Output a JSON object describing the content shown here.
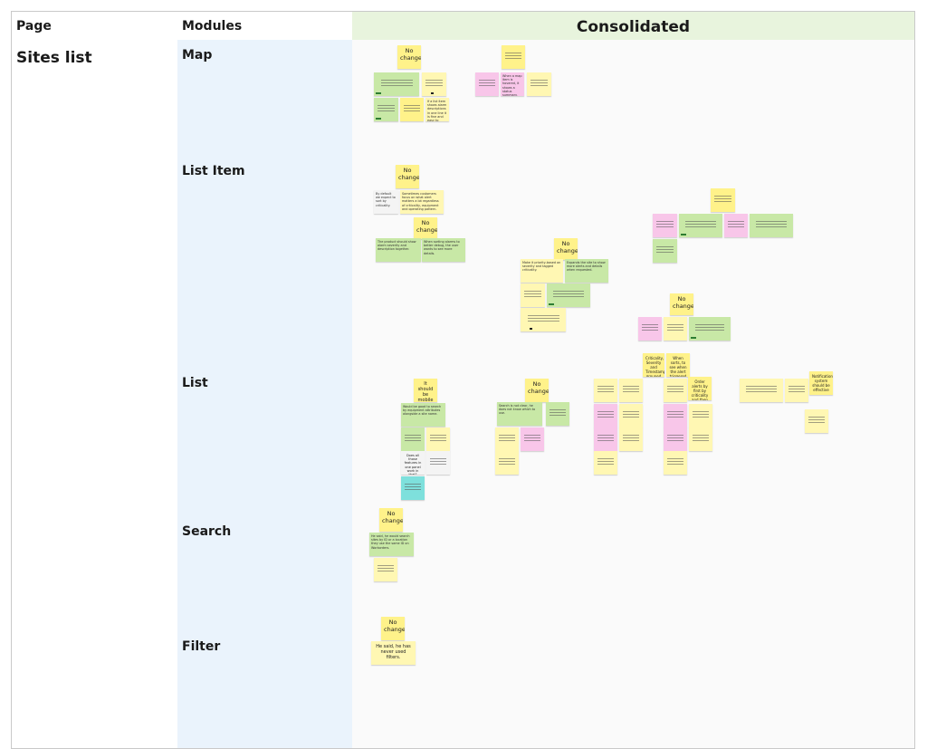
{
  "headers": {
    "page": "Page",
    "modules": "Modules",
    "consolidated": "Consolidated"
  },
  "page_label": "Sites list",
  "modules": [
    {
      "name": "Map"
    },
    {
      "name": "List Item"
    },
    {
      "name": "List"
    },
    {
      "name": "Search"
    },
    {
      "name": "Filter"
    }
  ],
  "stickies": {
    "nc": "No change",
    "mobile": "It should be mobile friendly",
    "crit": "Criticality, Severity and Timestamp grouped up",
    "when": "When sorts, to see when the alert triggered",
    "order": "Order alerts by first by criticality and then by times",
    "notif": "Notification system should be effective",
    "alltags": "Does all those features in one panel work in that?",
    "never": "He said, he has never used filters.",
    "c1": "By default we expect to sort by criticality.",
    "c2": "Sometimes customers focus on what alert matters a lot regardless of criticality, equipment and operating pattern.",
    "c3": "When a map item is hovered, it shows a status summary.",
    "c4": "If a list item shows alarm descriptions in one line it is fine and easy to read.",
    "c5": "Would be good to search by equipment attributes alongside a site name.",
    "c6": "He said, he would search sites by ID or a location they use the same ID on Workorders.",
    "c7": "Search is not clear, he does not know which to use.",
    "c8": "The product should show alarm severity and description together.",
    "c9": "When sorting alarms to better debug, the user wants to see more details.",
    "c10": "Make it priority-based on severity and tagged criticality.",
    "c11": "Expands the site to show more alerts and details when requested."
  }
}
